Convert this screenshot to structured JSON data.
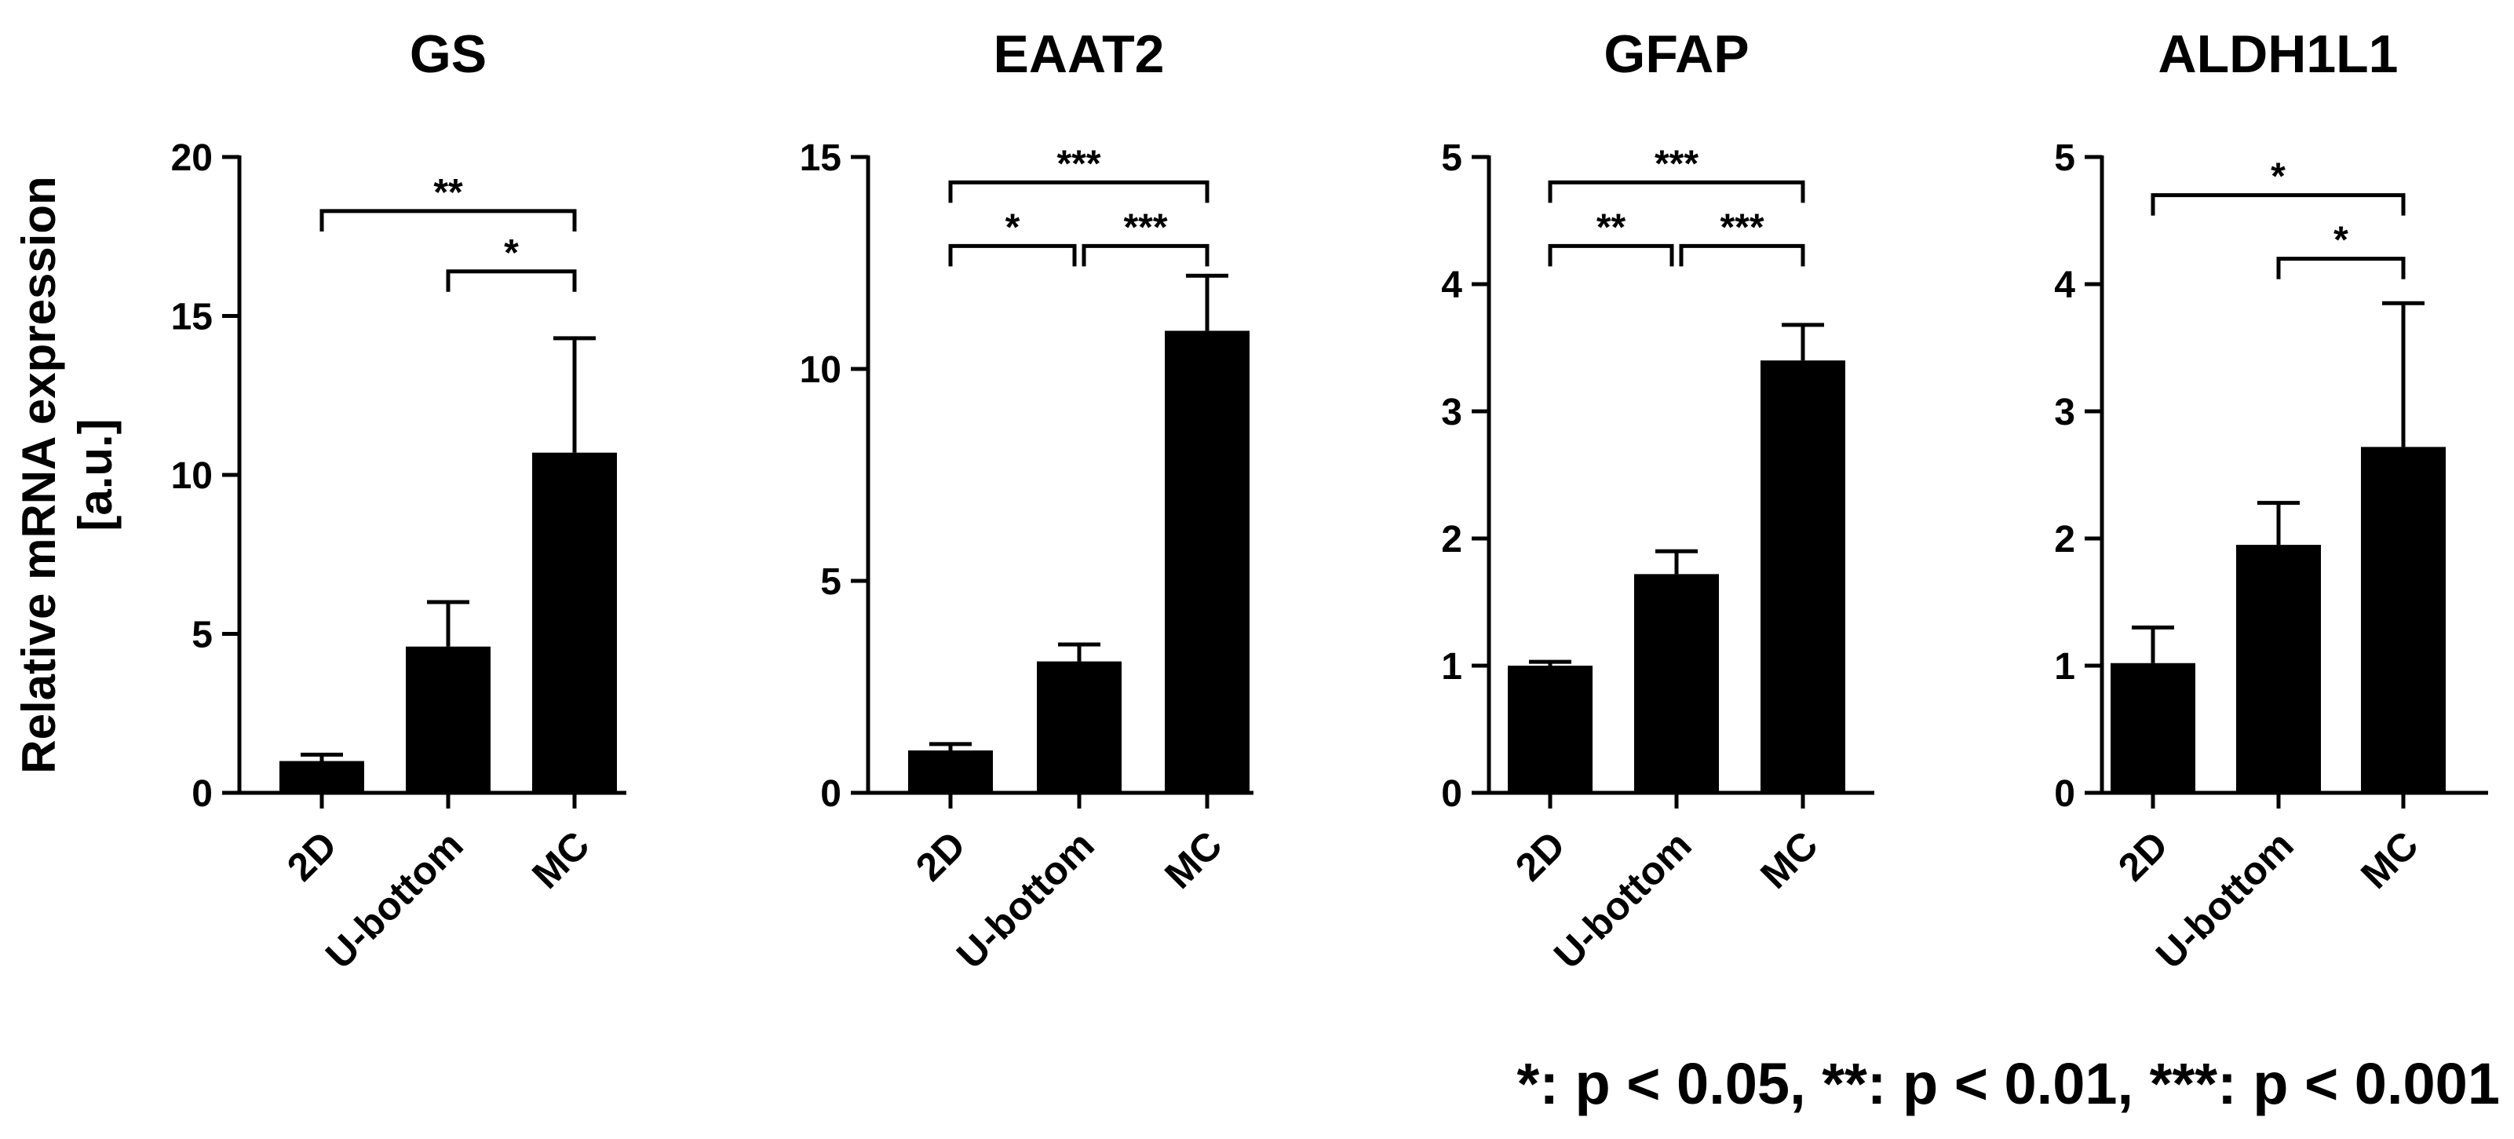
{
  "figure": {
    "ylabel_line1": "Relative mRNA expression",
    "ylabel_line2": "[a.u.]",
    "footnote": "*: p < 0.05, **: p < 0.01, ***: p < 0.001",
    "bar_color": "#000000"
  },
  "chart_data": [
    {
      "type": "bar",
      "title": "GS",
      "categories": [
        "2D",
        "U-bottom",
        "MC"
      ],
      "values": [
        1.0,
        4.6,
        10.7
      ],
      "errors": [
        0.2,
        1.4,
        3.6
      ],
      "ylim": [
        0,
        20
      ],
      "yticks": [
        0,
        5,
        10,
        15,
        20
      ],
      "significance": [
        {
          "from": 0,
          "to": 2,
          "label": "**",
          "level": 18.3
        },
        {
          "from": 1,
          "to": 2,
          "label": "*",
          "level": 16.4
        }
      ]
    },
    {
      "type": "bar",
      "title": "EAAT2",
      "categories": [
        "2D",
        "U-bottom",
        "MC"
      ],
      "values": [
        1.0,
        3.1,
        10.9
      ],
      "errors": [
        0.15,
        0.4,
        1.3
      ],
      "ylim": [
        0,
        15
      ],
      "yticks": [
        0,
        5,
        10,
        15
      ],
      "significance": [
        {
          "from": 0,
          "to": 2,
          "label": "***",
          "level": 14.4
        },
        {
          "from": 0,
          "to": 1,
          "label": "*",
          "level": 12.9
        },
        {
          "from": 1,
          "to": 2,
          "label": "***",
          "level": 12.9
        }
      ]
    },
    {
      "type": "bar",
      "title": "GFAP",
      "categories": [
        "2D",
        "U-bottom",
        "MC"
      ],
      "values": [
        1.0,
        1.72,
        3.4
      ],
      "errors": [
        0.03,
        0.18,
        0.28
      ],
      "ylim": [
        0,
        5
      ],
      "yticks": [
        0,
        1,
        2,
        3,
        4,
        5
      ],
      "significance": [
        {
          "from": 0,
          "to": 2,
          "label": "***",
          "level": 4.8
        },
        {
          "from": 0,
          "to": 1,
          "label": "**",
          "level": 4.3
        },
        {
          "from": 1,
          "to": 2,
          "label": "***",
          "level": 4.3
        }
      ]
    },
    {
      "type": "bar",
      "title": "ALDH1L1",
      "categories": [
        "2D",
        "U-bottom",
        "MC"
      ],
      "values": [
        1.02,
        1.95,
        2.72
      ],
      "errors": [
        0.28,
        0.33,
        1.13
      ],
      "ylim": [
        0,
        5
      ],
      "yticks": [
        0,
        1,
        2,
        3,
        4,
        5
      ],
      "significance": [
        {
          "from": 0,
          "to": 2,
          "label": "*",
          "level": 4.7
        },
        {
          "from": 1,
          "to": 2,
          "label": "*",
          "level": 4.2
        }
      ]
    }
  ]
}
